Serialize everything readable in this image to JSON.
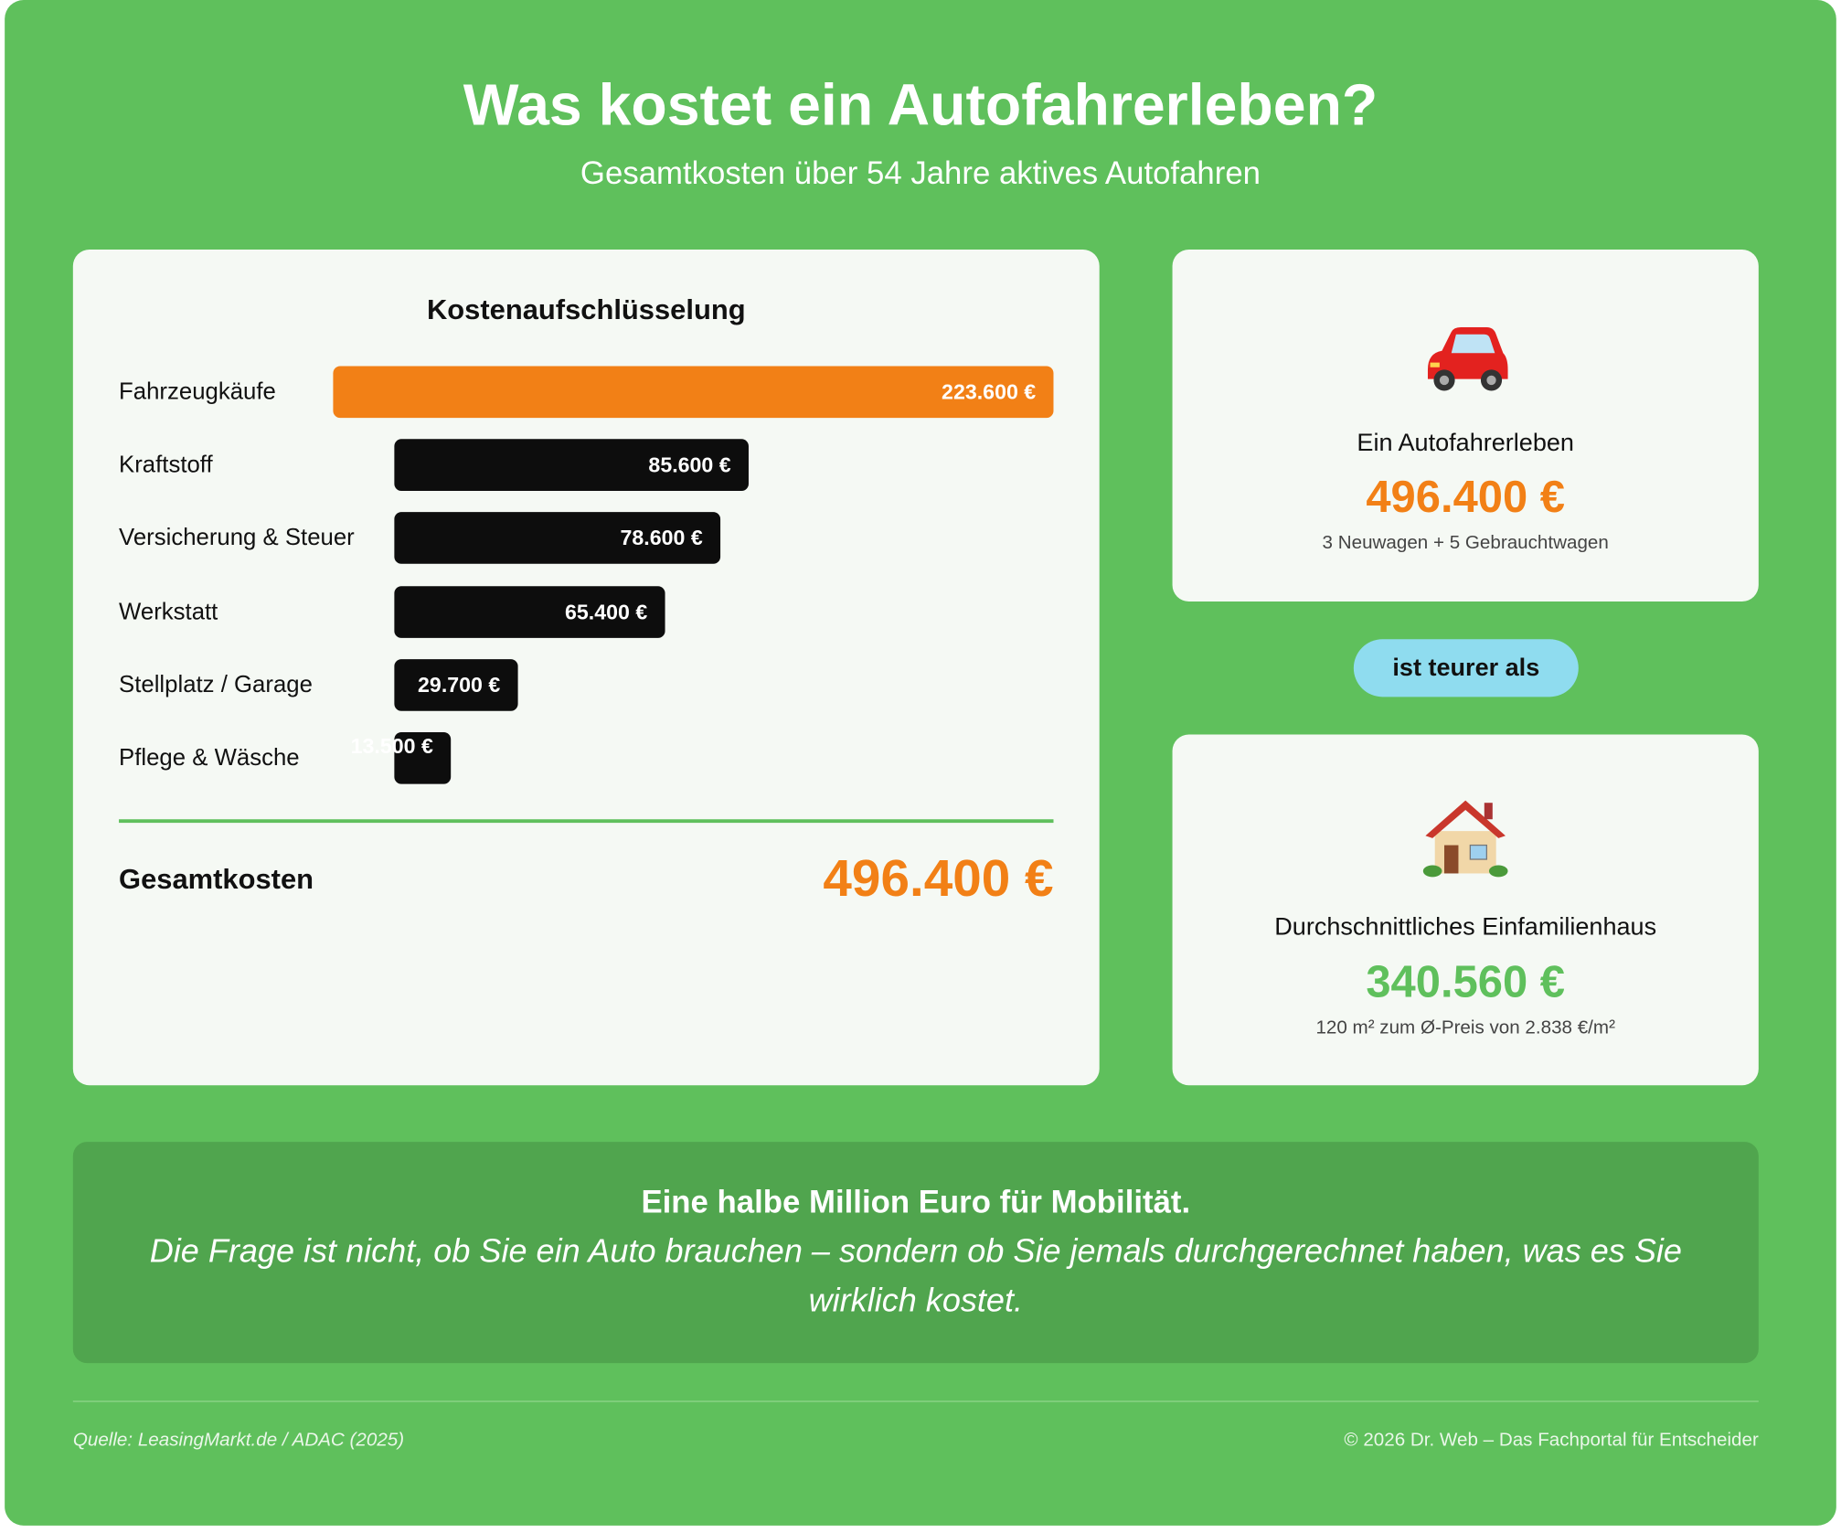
{
  "header": {
    "title": "Was kostet ein Autofahrerleben?",
    "subtitle": "Gesamtkosten über 54 Jahre aktives Autofahren"
  },
  "breakdown": {
    "title": "Kostenaufschlüsselung",
    "items": [
      {
        "label": "Fahrzeugkäufe",
        "value": 223600,
        "value_label": "223.600 €"
      },
      {
        "label": "Kraftstoff",
        "value": 85600,
        "value_label": "85.600 €"
      },
      {
        "label": "Versicherung & Steuer",
        "value": 78600,
        "value_label": "78.600 €"
      },
      {
        "label": "Werkstatt",
        "value": 65400,
        "value_label": "65.400 €"
      },
      {
        "label": "Stellplatz / Garage",
        "value": 29700,
        "value_label": "29.700 €"
      },
      {
        "label": "Pflege & Wäsche",
        "value": 13500,
        "value_label": "13.500 €"
      }
    ],
    "colors": {
      "first": "#f28016",
      "other": "#0d0d0d"
    },
    "total_label": "Gesamtkosten",
    "total_value": "496.400 €"
  },
  "car_card": {
    "icon": "car-icon",
    "label": "Ein Autofahrerleben",
    "value": "496.400 €",
    "note": "3 Neuwagen + 5 Gebrauchtwagen",
    "value_color": "#f28016"
  },
  "comparison": "ist teurer als",
  "house_card": {
    "icon": "house-icon",
    "label": "Durchschnittliches Einfamilienhaus",
    "value": "340.560 €",
    "note": "120 m² zum Ø-Preis von 2.838 €/m²",
    "value_color": "#5fc05c"
  },
  "banner": {
    "headline": "Eine halbe Million Euro für Mobilität.",
    "quote": "Die Frage ist nicht, ob Sie ein Auto brauchen – sondern ob Sie jemals durchgerechnet haben, was es Sie wirklich kostet."
  },
  "footer": {
    "source": "Quelle: LeasingMarkt.de / ADAC (2025)",
    "copyright": "© 2026 Dr. Web – Das Fachportal für Entscheider"
  }
}
